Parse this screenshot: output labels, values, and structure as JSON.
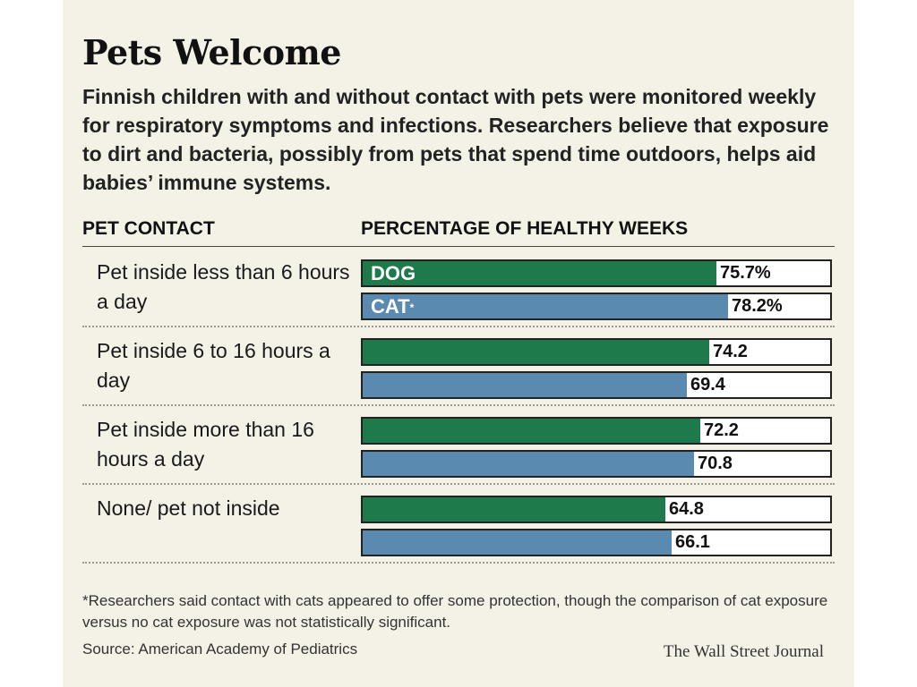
{
  "header": {
    "title": "Pets Welcome",
    "subtitle": "Finnish children with and without contact with pets were monitored weekly for respiratory symptoms and infections. Researchers believe that exposure to dirt and bacteria, possibly from pets that spend time outdoors, helps aid babies’ immune systems."
  },
  "columns": {
    "left": "PET CONTACT",
    "right": "PERCENTAGE OF HEALTHY WEEKS"
  },
  "colors": {
    "dog": "#1e7a4a",
    "cat": "#5b8ab0"
  },
  "chart_data": {
    "type": "bar",
    "orientation": "horizontal",
    "xlim": [
      0,
      100
    ],
    "groups": [
      {
        "label": "Pet inside less than 6 hours a day",
        "bars": [
          {
            "series": "DOG",
            "name": "DOG",
            "value": 75.7,
            "value_label": "75.7%"
          },
          {
            "series": "CAT",
            "name": "CAT",
            "name_mark": "*",
            "value": 78.2,
            "value_label": "78.2%"
          }
        ]
      },
      {
        "label": "Pet inside 6 to 16 hours a day",
        "bars": [
          {
            "series": "DOG",
            "name": "",
            "value": 74.2,
            "value_label": "74.2"
          },
          {
            "series": "CAT",
            "name": "",
            "value": 69.4,
            "value_label": "69.4"
          }
        ]
      },
      {
        "label": "Pet inside more than 16 hours a day",
        "bars": [
          {
            "series": "DOG",
            "name": "",
            "value": 72.2,
            "value_label": "72.2"
          },
          {
            "series": "CAT",
            "name": "",
            "value": 70.8,
            "value_label": "70.8"
          }
        ]
      },
      {
        "label": "None/ pet not inside",
        "bars": [
          {
            "series": "DOG",
            "name": "",
            "value": 64.8,
            "value_label": "64.8"
          },
          {
            "series": "CAT",
            "name": "",
            "value": 66.1,
            "value_label": "66.1"
          }
        ]
      }
    ]
  },
  "footer": {
    "footnote": "*Researchers said contact with cats appeared to offer some protection, though the comparison of cat exposure versus no cat exposure was not statistically significant.",
    "source": "Source: American Academy of Pediatrics",
    "publisher": "The Wall Street Journal"
  }
}
